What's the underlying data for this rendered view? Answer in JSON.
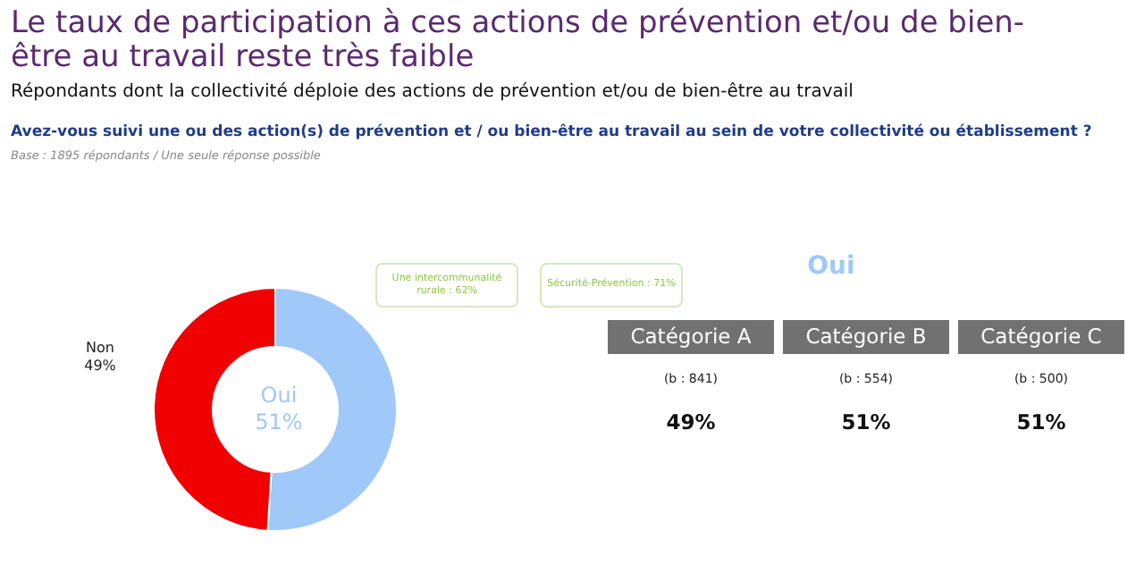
{
  "chart_data": [
    {
      "type": "donut",
      "title": "Le taux de participation à ces actions de prévention et/ou de bien-être au travail reste très faible",
      "subtitle": "Répondants dont la collectivité déploie des actions de prévention et/ou de bien-être au travail",
      "annotations": [
        "Avez-vous suivi une ou des action(s) de prévention et / ou bien-être au travail au sein de votre collectivité ou établissement ?",
        "Base : 1895 répondants / Une seule réponse possible",
        "Une intercommunalité rurale : 62%",
        "Sécurité-Prévention : 71%"
      ],
      "categories": [
        "Oui",
        "Non"
      ],
      "values": [
        51,
        49
      ],
      "value_labels": [
        "51%",
        "49%"
      ],
      "colors": [
        "#a0c8f8",
        "#f00000"
      ]
    },
    {
      "type": "other",
      "title": "Oui",
      "categories": [
        "Catégorie A",
        "Catégorie B",
        "Catégorie C"
      ],
      "annotations": [
        "(b : 841)",
        "(b : 554)",
        "(b : 500)"
      ],
      "value_labels": [
        "49%",
        "51%",
        "51%"
      ]
    }
  ]
}
